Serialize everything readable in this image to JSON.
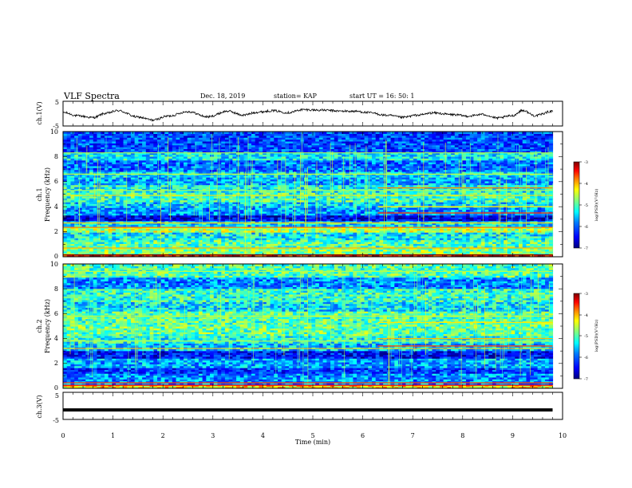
{
  "header": {
    "title": "VLF Spectra",
    "date": "Dec. 18, 2019",
    "station": "station= KAP",
    "start": "start  UT =   16: 50: 1"
  },
  "colors": {
    "ink": "#000000",
    "background": "#ffffff",
    "colormap": [
      "#00007f",
      "#0000ff",
      "#0080ff",
      "#00ffff",
      "#80ff80",
      "#ffff00",
      "#ff8000",
      "#ff0000",
      "#7f0000"
    ]
  },
  "chart_data": [
    {
      "type": "line",
      "panel": "ch1-voltage",
      "ylabel": "ch.1(V)",
      "ylim": [
        -5,
        5
      ],
      "yticks": [
        "5",
        "-5"
      ],
      "xlim": [
        0,
        10
      ],
      "x_end": 9.8,
      "waveform_knots": [
        [
          0.0,
          0.5
        ],
        [
          0.3,
          -0.9
        ],
        [
          0.6,
          -1.6
        ],
        [
          0.85,
          0.1
        ],
        [
          1.1,
          1.2
        ],
        [
          1.5,
          -1.4
        ],
        [
          1.8,
          -2.6
        ],
        [
          2.1,
          -1.0
        ],
        [
          2.5,
          0.8
        ],
        [
          2.9,
          -1.3
        ],
        [
          3.3,
          1.0
        ],
        [
          3.6,
          -0.6
        ],
        [
          3.9,
          0.6
        ],
        [
          4.2,
          1.2
        ],
        [
          4.5,
          0.4
        ],
        [
          4.8,
          1.6
        ],
        [
          5.2,
          1.4
        ],
        [
          5.6,
          1.0
        ],
        [
          5.9,
          0.9
        ],
        [
          6.1,
          0.4
        ],
        [
          6.5,
          -0.7
        ],
        [
          6.8,
          -1.5
        ],
        [
          7.1,
          -0.6
        ],
        [
          7.4,
          0.3
        ],
        [
          7.8,
          -0.4
        ],
        [
          8.1,
          -1.0
        ],
        [
          8.4,
          -0.3
        ],
        [
          8.7,
          -1.8
        ],
        [
          9.0,
          -0.8
        ],
        [
          9.2,
          1.3
        ],
        [
          9.45,
          -0.8
        ],
        [
          9.8,
          1.0
        ]
      ]
    },
    {
      "type": "heatmap",
      "panel": "ch1-spectrogram",
      "ylabel": "Frequency (kHz)",
      "channel_label": "ch.1",
      "ylim": [
        0,
        10
      ],
      "yticks": [
        "0",
        "2",
        "4",
        "6",
        "8",
        "10"
      ],
      "xlim": [
        0,
        10
      ],
      "x_end": 9.8,
      "colorbar": {
        "label": "log(PSD)(V²/Hz)",
        "range": [
          -7,
          -3
        ],
        "ticks": [
          "-3",
          "-4",
          "-5",
          "-6",
          "-7"
        ]
      },
      "bands": [
        {
          "f_lo": 0.0,
          "f_hi": 0.2,
          "level": 0.92
        },
        {
          "f_lo": 0.2,
          "f_hi": 0.7,
          "level": 0.55
        },
        {
          "f_lo": 0.7,
          "f_hi": 1.4,
          "level": 0.5
        },
        {
          "f_lo": 1.4,
          "f_hi": 1.9,
          "level": 0.42
        },
        {
          "f_lo": 1.9,
          "f_hi": 2.4,
          "level": 0.6
        },
        {
          "f_lo": 2.4,
          "f_hi": 2.9,
          "level": 0.4
        },
        {
          "f_lo": 2.9,
          "f_hi": 3.3,
          "level": 0.12
        },
        {
          "f_lo": 3.3,
          "f_hi": 3.9,
          "level": 0.3
        },
        {
          "f_lo": 3.9,
          "f_hi": 4.4,
          "level": 0.38
        },
        {
          "f_lo": 4.4,
          "f_hi": 5.1,
          "level": 0.48
        },
        {
          "f_lo": 5.1,
          "f_hi": 5.7,
          "level": 0.44
        },
        {
          "f_lo": 5.7,
          "f_hi": 6.3,
          "level": 0.33
        },
        {
          "f_lo": 6.3,
          "f_hi": 6.8,
          "level": 0.4
        },
        {
          "f_lo": 6.8,
          "f_hi": 7.8,
          "level": 0.26
        },
        {
          "f_lo": 7.8,
          "f_hi": 8.4,
          "level": 0.42
        },
        {
          "f_lo": 8.4,
          "f_hi": 10.0,
          "level": 0.22
        }
      ],
      "lines": [
        {
          "f": 0.15,
          "level": 1.0
        },
        {
          "f": 0.7,
          "level": 0.75
        },
        {
          "f": 2.35,
          "level": 0.8
        },
        {
          "f": 2.7,
          "level": 0.72
        },
        {
          "f": 4.9,
          "level": 0.7
        },
        {
          "f": 5.3,
          "level": 0.6
        },
        {
          "f": 6.6,
          "level": 0.62
        },
        {
          "f": 8.3,
          "level": 0.6
        }
      ],
      "late_lines": {
        "t_start": 6.3,
        "lines": [
          {
            "f": 3.5,
            "level": 0.85
          },
          {
            "f": 4.0,
            "level": 0.7
          },
          {
            "f": 5.5,
            "level": 0.8
          }
        ]
      }
    },
    {
      "type": "heatmap",
      "panel": "ch2-spectrogram",
      "ylabel": "Frequency (kHz)",
      "channel_label": "ch.2",
      "ylim": [
        0,
        10
      ],
      "yticks": [
        "0",
        "2",
        "4",
        "6",
        "8",
        "10"
      ],
      "xlim": [
        0,
        10
      ],
      "x_end": 9.8,
      "colorbar": {
        "label": "log(PSD)(V²/Hz)",
        "range": [
          -7,
          -3
        ],
        "ticks": [
          "-3",
          "-4",
          "-5",
          "-6",
          "-7"
        ]
      },
      "bands": [
        {
          "f_lo": 0.0,
          "f_hi": 0.3,
          "level": 0.7
        },
        {
          "f_lo": 0.3,
          "f_hi": 1.2,
          "level": 0.3
        },
        {
          "f_lo": 1.2,
          "f_hi": 1.7,
          "level": 0.2
        },
        {
          "f_lo": 1.7,
          "f_hi": 2.5,
          "level": 0.33
        },
        {
          "f_lo": 2.5,
          "f_hi": 3.1,
          "level": 0.15
        },
        {
          "f_lo": 3.1,
          "f_hi": 3.6,
          "level": 0.36
        },
        {
          "f_lo": 3.6,
          "f_hi": 4.3,
          "level": 0.45
        },
        {
          "f_lo": 4.3,
          "f_hi": 5.2,
          "level": 0.52
        },
        {
          "f_lo": 5.2,
          "f_hi": 6.2,
          "level": 0.5
        },
        {
          "f_lo": 6.2,
          "f_hi": 7.0,
          "level": 0.4
        },
        {
          "f_lo": 7.0,
          "f_hi": 8.0,
          "level": 0.47
        },
        {
          "f_lo": 8.0,
          "f_hi": 9.0,
          "level": 0.3
        },
        {
          "f_lo": 9.0,
          "f_hi": 10.0,
          "level": 0.5
        }
      ],
      "lines": [
        {
          "f": 0.25,
          "level": 0.9
        },
        {
          "f": 0.45,
          "level": 0.85
        },
        {
          "f": 3.2,
          "level": 0.72
        },
        {
          "f": 3.8,
          "level": 0.6
        },
        {
          "f": 5.8,
          "level": 0.62
        },
        {
          "f": 9.4,
          "level": 0.6
        }
      ],
      "late_lines": {
        "t_start": 6.3,
        "lines": [
          {
            "f": 3.4,
            "level": 0.85
          },
          {
            "f": 4.0,
            "level": 0.75
          },
          {
            "f": 5.3,
            "level": 0.7
          }
        ]
      }
    },
    {
      "type": "line",
      "panel": "ch3-voltage",
      "ylabel": "ch.3(V)",
      "ylim": [
        -5,
        5
      ],
      "yticks": [
        "5",
        "-5"
      ],
      "xlim": [
        0,
        10
      ],
      "x_end": 9.8,
      "constant_value": -1.5
    }
  ],
  "xaxis": {
    "label": "Time (min)",
    "ticks": [
      "0",
      "1",
      "2",
      "3",
      "4",
      "5",
      "6",
      "7",
      "8",
      "9",
      "10"
    ]
  }
}
